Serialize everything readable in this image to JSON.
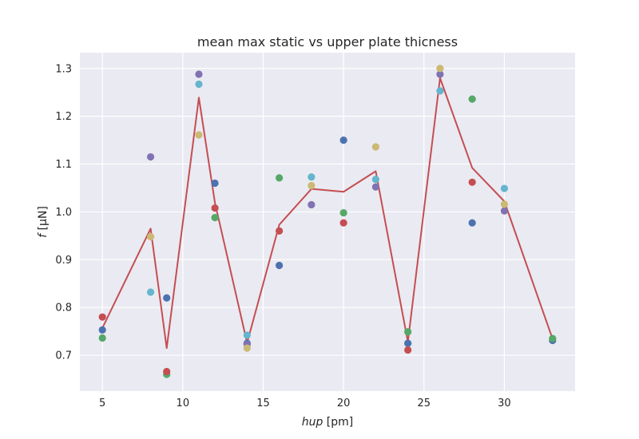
{
  "chart_data": {
    "type": "scatter",
    "title": "mean max static vs upper plate thicness",
    "xlabel_italic": "hup",
    "xlabel_unit": " [pm]",
    "ylabel_prefix": "f",
    "ylabel_unit": " [μN]",
    "xlim": [
      3.6,
      34.4
    ],
    "ylim": [
      0.625,
      1.333
    ],
    "x_ticks": [
      5,
      10,
      15,
      20,
      25,
      30
    ],
    "y_ticks": [
      0.7,
      0.8,
      0.9,
      1.0,
      1.1,
      1.2,
      1.3
    ],
    "y_tick_labels": [
      "0.7",
      "0.8",
      "0.9",
      "1.0",
      "1.1",
      "1.2",
      "1.3"
    ],
    "grid": true,
    "background": "#eaeaf2",
    "series": [
      {
        "color": "#4c72b0",
        "points": [
          [
            5,
            0.753
          ],
          [
            9,
            0.82
          ],
          [
            12,
            1.06
          ],
          [
            14,
            0.725
          ],
          [
            16,
            0.888
          ],
          [
            20,
            1.15
          ],
          [
            24,
            0.725
          ],
          [
            28,
            0.977
          ],
          [
            33,
            0.731
          ]
        ]
      },
      {
        "color": "#55a868",
        "points": [
          [
            5,
            0.736
          ],
          [
            9,
            0.66
          ],
          [
            12,
            0.988
          ],
          [
            16,
            1.071
          ],
          [
            20,
            0.998
          ],
          [
            24,
            0.749
          ],
          [
            28,
            1.236
          ],
          [
            33,
            0.735
          ]
        ]
      },
      {
        "color": "#c44e52",
        "points": [
          [
            5,
            0.78
          ],
          [
            9,
            0.666
          ],
          [
            12,
            1.008
          ],
          [
            16,
            0.96
          ],
          [
            20,
            0.977
          ],
          [
            24,
            0.711
          ],
          [
            28,
            1.062
          ]
        ]
      },
      {
        "color": "#8172b2",
        "points": [
          [
            8,
            1.115
          ],
          [
            11,
            1.288
          ],
          [
            14,
            0.723
          ],
          [
            18,
            1.015
          ],
          [
            22,
            1.052
          ],
          [
            26,
            1.288
          ],
          [
            30,
            1.002
          ]
        ]
      },
      {
        "color": "#ccb974",
        "points": [
          [
            8,
            0.948
          ],
          [
            11,
            1.161
          ],
          [
            14,
            0.715
          ],
          [
            18,
            1.055
          ],
          [
            22,
            1.136
          ],
          [
            26,
            1.3
          ],
          [
            30,
            1.016
          ]
        ]
      },
      {
        "color": "#64b5cd",
        "points": [
          [
            8,
            0.832
          ],
          [
            11,
            1.267
          ],
          [
            14,
            0.742
          ],
          [
            18,
            1.073
          ],
          [
            22,
            1.068
          ],
          [
            26,
            1.253
          ],
          [
            30,
            1.049
          ]
        ]
      }
    ],
    "mean_line": {
      "color": "#c44e52",
      "points": [
        [
          5,
          0.757
        ],
        [
          8,
          0.965
        ],
        [
          9,
          0.715
        ],
        [
          11,
          1.239
        ],
        [
          12,
          1.019
        ],
        [
          14,
          0.726
        ],
        [
          16,
          0.973
        ],
        [
          18,
          1.048
        ],
        [
          20,
          1.042
        ],
        [
          22,
          1.085
        ],
        [
          24,
          0.728
        ],
        [
          26,
          1.28
        ],
        [
          28,
          1.092
        ],
        [
          30,
          1.022
        ],
        [
          33,
          0.734
        ]
      ]
    }
  }
}
